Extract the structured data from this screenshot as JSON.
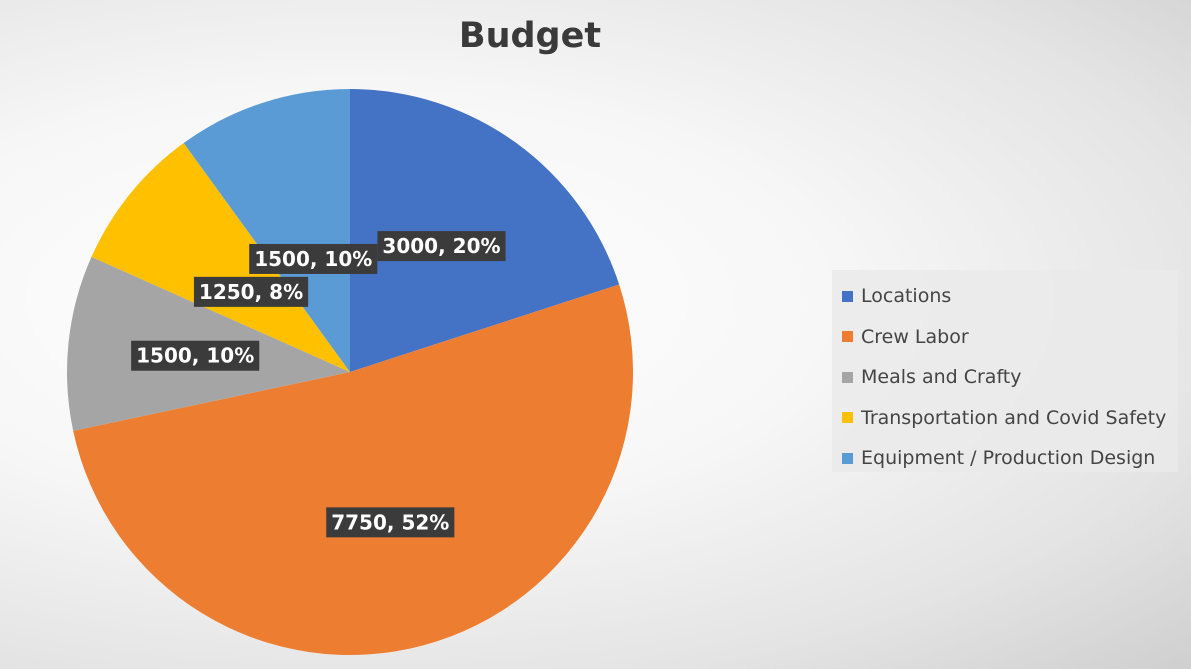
{
  "chart_data": {
    "type": "pie",
    "title": "Budget",
    "categories": [
      "Locations",
      "Crew Labor",
      "Meals  and Crafty",
      "Transportation and Covid Safety",
      "Equipment / Production Design"
    ],
    "values": [
      3000,
      7750,
      1500,
      1250,
      1500
    ],
    "percents": [
      "20%",
      "52%",
      "10%",
      "8%",
      "10%"
    ],
    "data_labels": [
      "3000, 20%",
      "7750, 52%",
      "1500, 10%",
      "1250, 8%",
      "1500, 10%"
    ],
    "colors": [
      "#4472c4",
      "#ed7d31",
      "#a5a5a5",
      "#ffc000",
      "#5b9bd5"
    ],
    "legend_position": "right"
  }
}
